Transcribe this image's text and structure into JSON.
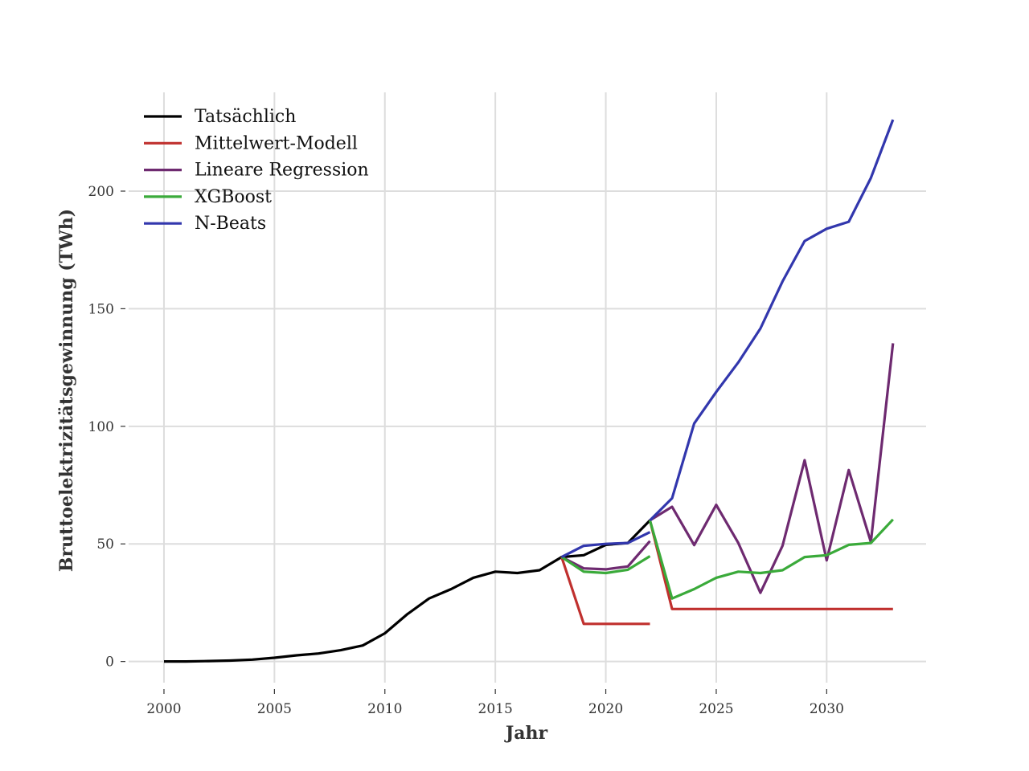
{
  "chart_data": {
    "type": "line",
    "title": "",
    "xlabel": "Jahr",
    "ylabel": "Bruttoelektrizitätsgewinnung (TWh)",
    "xlim": [
      1998.4,
      2034.5
    ],
    "ylim": [
      -9,
      242
    ],
    "xticks": [
      2000,
      2005,
      2010,
      2015,
      2020,
      2025,
      2030
    ],
    "yticks": [
      0,
      50,
      100,
      150,
      200
    ],
    "grid": true,
    "legend_position": "top-left",
    "series": [
      {
        "name": "Tatsächlich",
        "color": "#000000",
        "x": [
          2000,
          2001,
          2002,
          2003,
          2004,
          2005,
          2006,
          2007,
          2008,
          2009,
          2010,
          2011,
          2012,
          2013,
          2014,
          2015,
          2016,
          2017,
          2018,
          2019,
          2020,
          2021,
          2022
        ],
        "y": [
          0,
          0,
          0.2,
          0.4,
          0.8,
          1.6,
          2.6,
          3.4,
          4.8,
          6.8,
          12,
          20,
          26.8,
          30.8,
          35.6,
          38.2,
          37.6,
          38.8,
          44.4,
          45.2,
          49.6,
          50.4,
          60
        ]
      },
      {
        "name": "Mittelwert-Modell",
        "color": "#c0302e",
        "segments": [
          {
            "x": [
              2018,
              2019,
              2020,
              2021,
              2022
            ],
            "y": [
              44.4,
              16,
              16,
              16,
              16
            ]
          },
          {
            "x": [
              2022,
              2023,
              2024,
              2025,
              2026,
              2027,
              2028,
              2029,
              2030,
              2031,
              2032,
              2033
            ],
            "y": [
              60,
              22.3,
              22.3,
              22.3,
              22.3,
              22.3,
              22.3,
              22.3,
              22.3,
              22.3,
              22.3,
              22.3
            ]
          }
        ]
      },
      {
        "name": "Lineare Regression",
        "color": "#6e2a70",
        "segments": [
          {
            "x": [
              2018,
              2019,
              2020,
              2021,
              2022
            ],
            "y": [
              44.4,
              39.6,
              39.2,
              40.4,
              51.2
            ]
          },
          {
            "x": [
              2022,
              2023,
              2024,
              2025,
              2026,
              2027,
              2028,
              2029,
              2030,
              2031,
              2032,
              2033
            ],
            "y": [
              60,
              65.8,
              49.5,
              66.6,
              50.4,
              29.2,
              49.2,
              85.6,
              43,
              81.4,
              50.8,
              135.3
            ]
          }
        ]
      },
      {
        "name": "XGBoost",
        "color": "#3aaa3a",
        "segments": [
          {
            "x": [
              2018,
              2019,
              2020,
              2021,
              2022
            ],
            "y": [
              44.4,
              38.2,
              37.6,
              39,
              44.8
            ]
          },
          {
            "x": [
              2022,
              2023,
              2024,
              2025,
              2026,
              2027,
              2028,
              2029,
              2030,
              2031,
              2032,
              2033
            ],
            "y": [
              60,
              26.8,
              30.8,
              35.6,
              38.2,
              37.6,
              38.8,
              44.4,
              45.2,
              49.6,
              50.4,
              60.4
            ]
          }
        ]
      },
      {
        "name": "N-Beats",
        "color": "#3237ad",
        "segments": [
          {
            "x": [
              2018,
              2019,
              2020,
              2021,
              2022
            ],
            "y": [
              44.4,
              49.2,
              50,
              50.4,
              55
            ]
          },
          {
            "x": [
              2022,
              2023,
              2024,
              2025,
              2026,
              2027,
              2028,
              2029,
              2030,
              2031,
              2032,
              2033
            ],
            "y": [
              60,
              69.4,
              101.2,
              114.6,
              127.2,
              141.6,
              161.6,
              178.8,
              184,
              187,
              205.6,
              230.4
            ]
          }
        ]
      }
    ]
  }
}
